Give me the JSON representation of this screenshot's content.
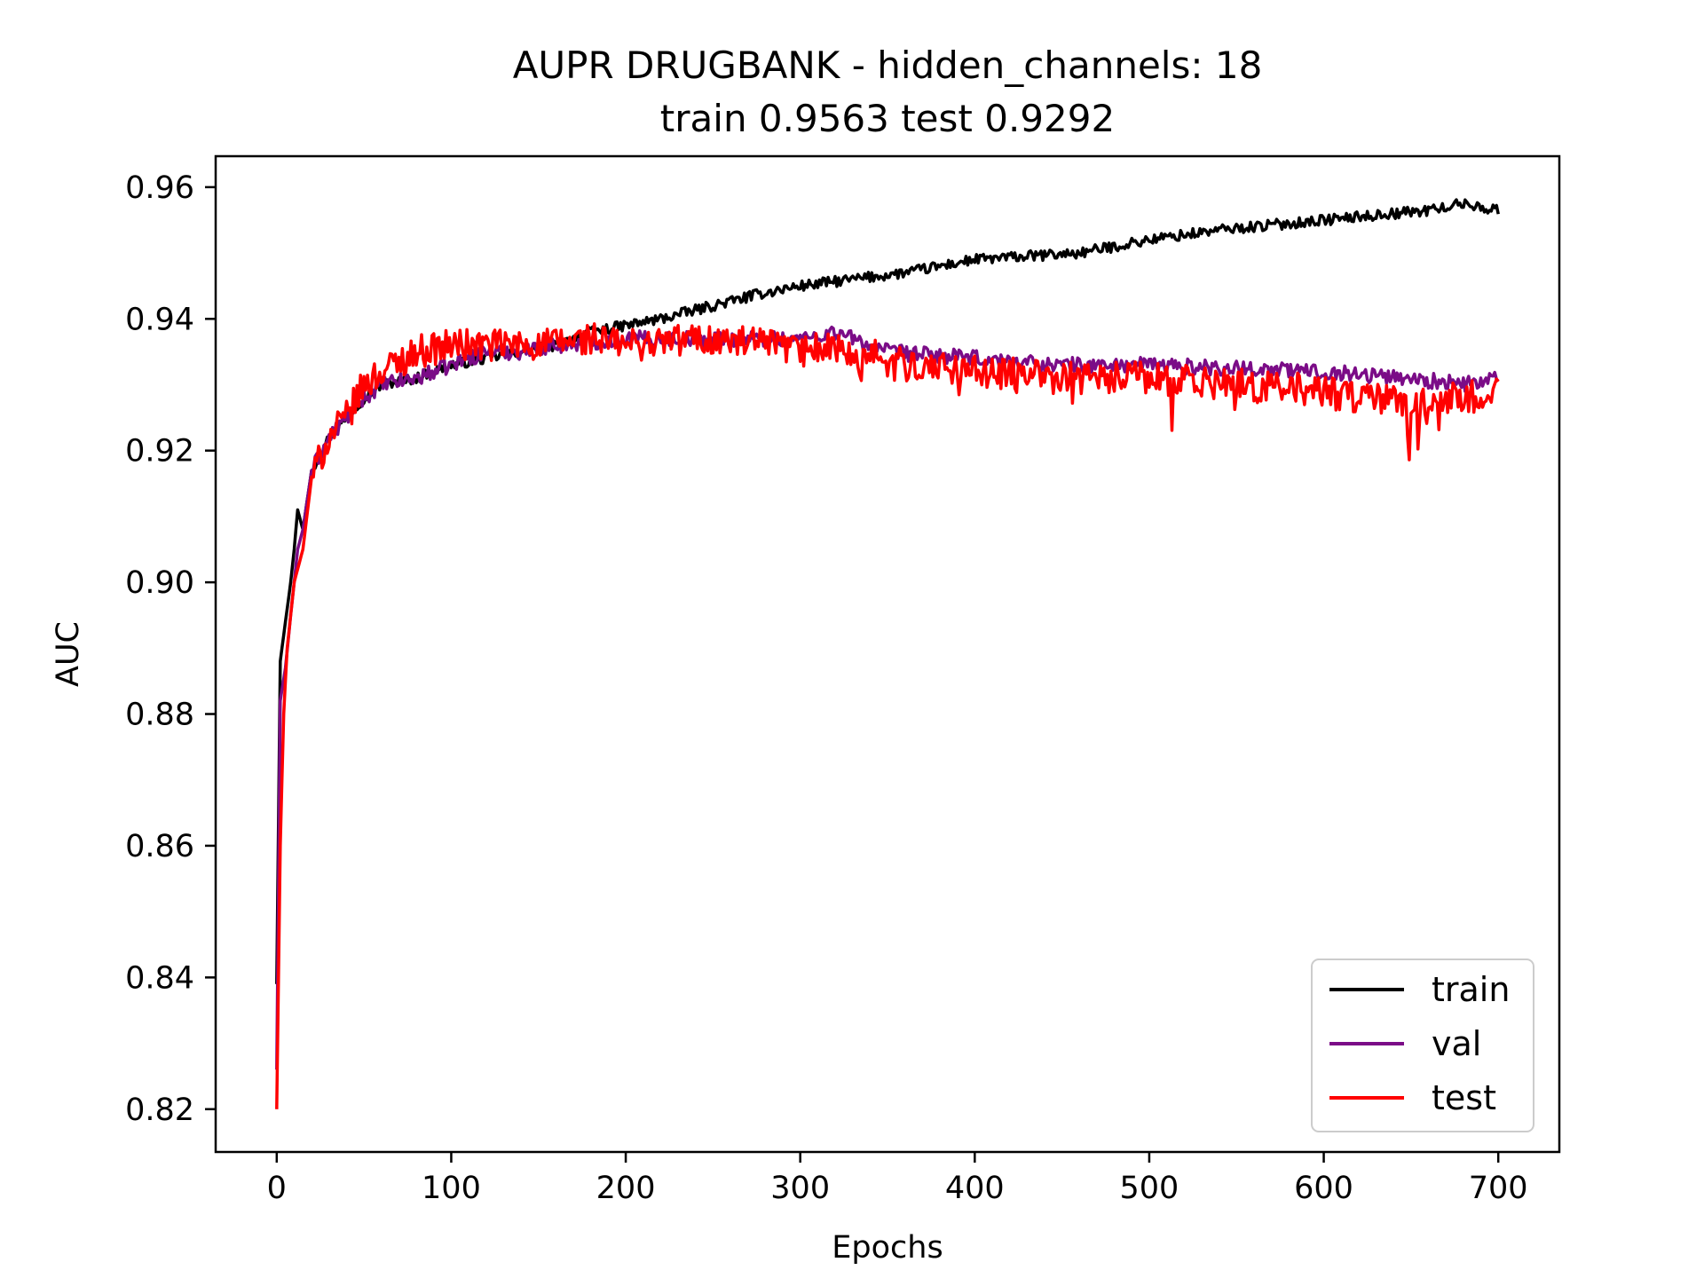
{
  "chart_data": {
    "type": "line",
    "title": "AUPR DRUGBANK - hidden_channels: 18",
    "subtitle": "train 0.9563 test 0.9292",
    "xlabel": "Epochs",
    "ylabel": "AUC",
    "xlim": [
      -35,
      735
    ],
    "ylim": [
      0.8135,
      0.9647
    ],
    "xticks": [
      0,
      100,
      200,
      300,
      400,
      500,
      600,
      700
    ],
    "xtick_labels": [
      "0",
      "100",
      "200",
      "300",
      "400",
      "500",
      "600",
      "700"
    ],
    "yticks": [
      0.82,
      0.84,
      0.86,
      0.88,
      0.9,
      0.92,
      0.94,
      0.96
    ],
    "ytick_labels": [
      "0.82",
      "0.84",
      "0.86",
      "0.88",
      "0.90",
      "0.92",
      "0.94",
      "0.96"
    ],
    "grid": false,
    "legend_position": "lower-right",
    "series": [
      {
        "name": "train",
        "color": "#000000",
        "noise": 0.0008,
        "points": [
          [
            0,
            0.839
          ],
          [
            2,
            0.888
          ],
          [
            5,
            0.894
          ],
          [
            8,
            0.9
          ],
          [
            10,
            0.905
          ],
          [
            12,
            0.911
          ],
          [
            15,
            0.908
          ],
          [
            20,
            0.917
          ],
          [
            30,
            0.922
          ],
          [
            40,
            0.925
          ],
          [
            50,
            0.928
          ],
          [
            60,
            0.93
          ],
          [
            80,
            0.931
          ],
          [
            100,
            0.933
          ],
          [
            120,
            0.934
          ],
          [
            140,
            0.935
          ],
          [
            160,
            0.936
          ],
          [
            180,
            0.938
          ],
          [
            200,
            0.939
          ],
          [
            220,
            0.94
          ],
          [
            250,
            0.942
          ],
          [
            280,
            0.944
          ],
          [
            300,
            0.945
          ],
          [
            330,
            0.946
          ],
          [
            360,
            0.947
          ],
          [
            400,
            0.949
          ],
          [
            430,
            0.9495
          ],
          [
            460,
            0.95
          ],
          [
            500,
            0.952
          ],
          [
            540,
            0.9535
          ],
          [
            580,
            0.9545
          ],
          [
            620,
            0.9555
          ],
          [
            660,
            0.9565
          ],
          [
            680,
            0.9575
          ],
          [
            700,
            0.9565
          ]
        ]
      },
      {
        "name": "val",
        "color": "#7b0c87",
        "noise": 0.0012,
        "points": [
          [
            0,
            0.826
          ],
          [
            2,
            0.882
          ],
          [
            5,
            0.887
          ],
          [
            8,
            0.895
          ],
          [
            10,
            0.9
          ],
          [
            12,
            0.905
          ],
          [
            15,
            0.908
          ],
          [
            20,
            0.917
          ],
          [
            30,
            0.922
          ],
          [
            40,
            0.925
          ],
          [
            50,
            0.928
          ],
          [
            60,
            0.93
          ],
          [
            80,
            0.931
          ],
          [
            100,
            0.933
          ],
          [
            120,
            0.935
          ],
          [
            140,
            0.935
          ],
          [
            160,
            0.936
          ],
          [
            200,
            0.937
          ],
          [
            250,
            0.937
          ],
          [
            300,
            0.937
          ],
          [
            320,
            0.938
          ],
          [
            350,
            0.935
          ],
          [
            400,
            0.934
          ],
          [
            450,
            0.933
          ],
          [
            500,
            0.933
          ],
          [
            550,
            0.9325
          ],
          [
            600,
            0.932
          ],
          [
            650,
            0.931
          ],
          [
            680,
            0.93
          ],
          [
            700,
            0.931
          ]
        ]
      },
      {
        "name": "test",
        "color": "#ff0000",
        "noise": 0.0025,
        "points": [
          [
            0,
            0.82
          ],
          [
            2,
            0.86
          ],
          [
            4,
            0.88
          ],
          [
            6,
            0.89
          ],
          [
            10,
            0.9
          ],
          [
            15,
            0.905
          ],
          [
            20,
            0.916
          ],
          [
            30,
            0.922
          ],
          [
            40,
            0.925
          ],
          [
            50,
            0.93
          ],
          [
            60,
            0.932
          ],
          [
            80,
            0.935
          ],
          [
            100,
            0.936
          ],
          [
            120,
            0.936
          ],
          [
            150,
            0.936
          ],
          [
            180,
            0.937
          ],
          [
            200,
            0.936
          ],
          [
            240,
            0.937
          ],
          [
            280,
            0.936
          ],
          [
            300,
            0.935
          ],
          [
            320,
            0.936
          ],
          [
            360,
            0.933
          ],
          [
            400,
            0.932
          ],
          [
            450,
            0.931
          ],
          [
            500,
            0.931
          ],
          [
            550,
            0.93
          ],
          [
            600,
            0.929
          ],
          [
            650,
            0.927
          ],
          [
            680,
            0.928
          ],
          [
            700,
            0.929
          ]
        ]
      }
    ]
  }
}
